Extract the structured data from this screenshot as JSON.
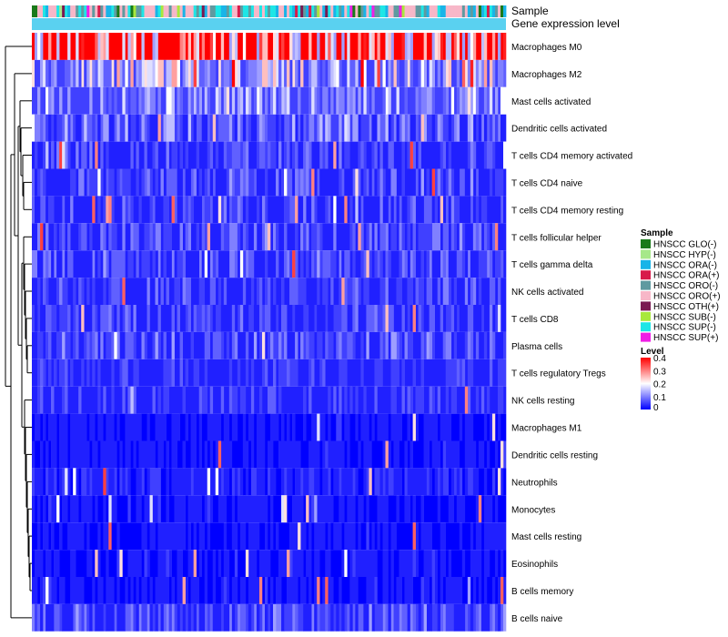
{
  "chart_data": {
    "type": "heatmap",
    "title": "",
    "annotation_tracks": [
      "Sample",
      "Gene expression level"
    ],
    "rows": [
      "Macrophages M0",
      "Macrophages M2",
      "Mast cells activated",
      "Dendritic cells activated",
      "T cells CD4 memory activated",
      "T cells CD4 naive",
      "T cells CD4 memory resting",
      "T cells follicular helper",
      "T cells gamma delta",
      "NK cells activated",
      "T cells CD8",
      "Plasma cells",
      "T cells regulatory  Tregs",
      "NK cells resting",
      "Macrophages M1",
      "Dendritic cells resting",
      "Neutrophils",
      "Monocytes",
      "Mast cells resting",
      "Eosinophils",
      "B cells memory",
      "B cells naive"
    ],
    "row_mean_level": [
      0.36,
      0.14,
      0.11,
      0.08,
      0.05,
      0.06,
      0.05,
      0.06,
      0.06,
      0.05,
      0.05,
      0.06,
      0.04,
      0.04,
      0.02,
      0.02,
      0.03,
      0.02,
      0.02,
      0.02,
      0.02,
      0.06
    ],
    "n_samples": 173,
    "sample_legend": {
      "title": "Sample",
      "items": [
        {
          "label": "HNSCC GLO(-)",
          "color": "#1a7a1a"
        },
        {
          "label": "HNSCC HYP(-)",
          "color": "#a6e88a"
        },
        {
          "label": "HNSCC ORA(-)",
          "color": "#18b4e8"
        },
        {
          "label": "HNSCC ORA(+)",
          "color": "#d81b4a"
        },
        {
          "label": "HNSCC ORO(-)",
          "color": "#5f9aa0"
        },
        {
          "label": "HNSCC ORO(+)",
          "color": "#f7b7c8"
        },
        {
          "label": "HNSCC OTH(+)",
          "color": "#7a1a52"
        },
        {
          "label": "HNSCC SUB(-)",
          "color": "#a8e83c"
        },
        {
          "label": "HNSCC SUP(-)",
          "color": "#1ee6e6"
        },
        {
          "label": "HNSCC SUP(+)",
          "color": "#f01ee6"
        }
      ]
    },
    "level_legend": {
      "title": "Level",
      "ticks": [
        0.4,
        0.3,
        0.2,
        0.1,
        0
      ],
      "range": [
        0,
        0.4
      ],
      "colors": [
        "#0000ff",
        "#ffffff",
        "#ff0000"
      ]
    },
    "expression_track_color": "#5ad1f0"
  }
}
